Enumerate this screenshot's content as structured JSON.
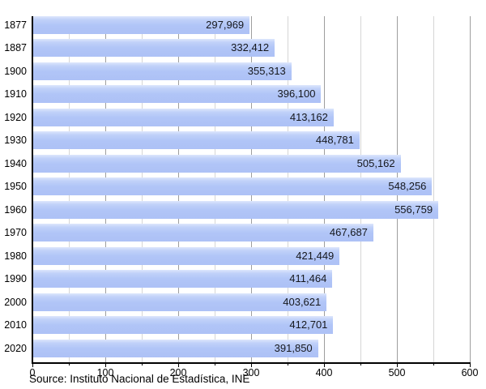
{
  "chart_data": {
    "type": "bar",
    "orientation": "horizontal",
    "title": "",
    "xlabel": "",
    "ylabel": "",
    "categories": [
      "1877",
      "1887",
      "1900",
      "1910",
      "1920",
      "1930",
      "1940",
      "1950",
      "1960",
      "1970",
      "1980",
      "1990",
      "2000",
      "2010",
      "2020"
    ],
    "values": [
      297969,
      332412,
      355313,
      396100,
      413162,
      448781,
      505162,
      548256,
      556759,
      467687,
      421449,
      411464,
      403621,
      412701,
      391850
    ],
    "value_labels": [
      "297,969",
      "332,412",
      "355,313",
      "396,100",
      "413,162",
      "448,781",
      "505,162",
      "548,256",
      "556,759",
      "467,687",
      "421,449",
      "411,464",
      "403,621",
      "412,701",
      "391,850"
    ],
    "x_axis": {
      "min": 0,
      "max": 600,
      "major_tick_step": 100,
      "minor_tick_step": 50,
      "tick_labels": [
        "0",
        "100",
        "200",
        "300",
        "400",
        "500",
        "600"
      ],
      "units_per_value": 1000
    },
    "grid": "vertical",
    "legend": "none",
    "source": "Source: Instituto Nacional de Estadística, INE",
    "colors": {
      "bar_fill": "#b1c5f7",
      "bar_fill_top": "#dde7fc",
      "grid_major": "#9e9e9e",
      "grid_minor": "#d6d6d6",
      "axis": "#000000",
      "text": "#000000",
      "value_text": "#16181d",
      "background": "#ffffff"
    }
  }
}
